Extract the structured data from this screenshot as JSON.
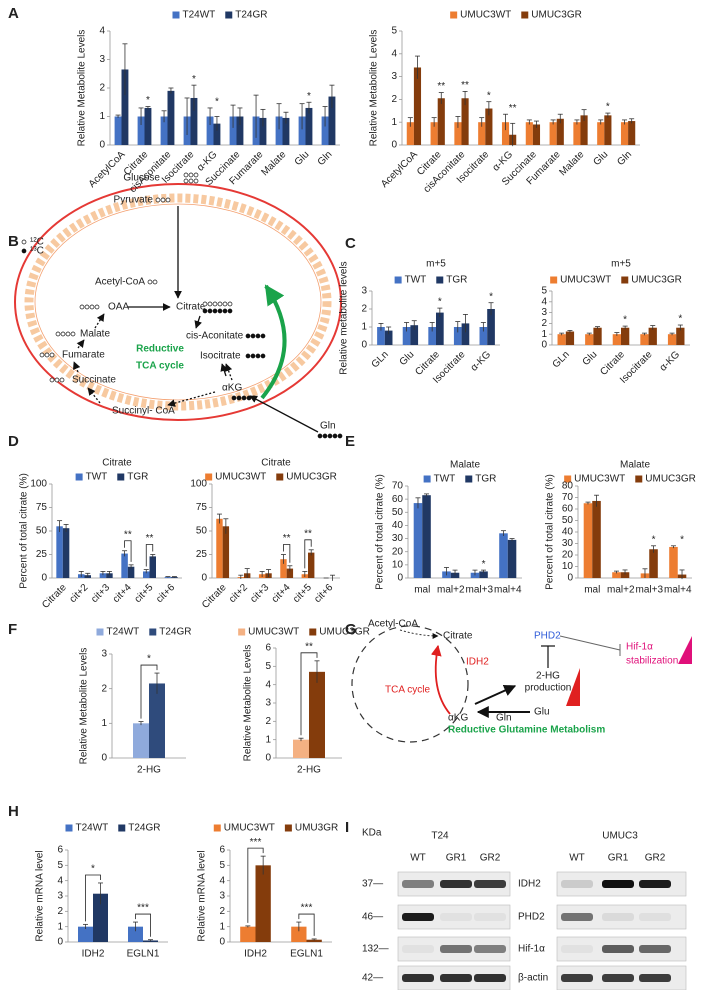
{
  "panel_labels": [
    "A",
    "B",
    "C",
    "D",
    "E",
    "F",
    "G",
    "H",
    "I"
  ],
  "chart_data": [
    {
      "type": "bar",
      "ylabel": "Relative Metabolite Levels",
      "categories": [
        "AcetylCoA",
        "Citrate",
        "cisAconitate",
        "Isocitrate",
        "α-KG",
        "Succinate",
        "Fumarate",
        "Malate",
        "Glu",
        "Gln"
      ],
      "series": [
        {
          "name": "T24WT",
          "color": "#4472c4",
          "values": [
            1,
            1,
            1,
            1,
            1,
            1,
            1,
            1,
            1,
            1
          ],
          "errors": [
            0.05,
            0.3,
            0.2,
            0.65,
            0.3,
            0.4,
            0.75,
            0.45,
            0.45,
            0.35
          ]
        },
        {
          "name": "T24GR",
          "color": "#203864",
          "values": [
            2.65,
            1.3,
            1.9,
            1.65,
            0.75,
            1.0,
            0.95,
            0.95,
            1.3,
            1.7
          ],
          "errors": [
            0.9,
            0.05,
            0.1,
            0.45,
            0.25,
            0.3,
            0.3,
            0.2,
            0.2,
            0.4
          ]
        }
      ],
      "significance": [
        null,
        "*",
        null,
        "*",
        "*",
        null,
        null,
        null,
        "*",
        null
      ],
      "ylim": [
        0,
        4
      ],
      "yticks": [
        0,
        1,
        2,
        3,
        4
      ]
    },
    {
      "type": "bar",
      "ylabel": "Relative Metabolite Levels",
      "categories": [
        "AcetylCoA",
        "Citrate",
        "cisAconitate",
        "Isocitrate",
        "α-KG",
        "Succinate",
        "Fumarate",
        "Malate",
        "Glu",
        "Gln"
      ],
      "series": [
        {
          "name": "UMUC3WT",
          "color": "#ed7d31",
          "values": [
            1,
            1,
            1,
            1,
            1,
            1,
            1,
            1,
            1,
            1
          ],
          "errors": [
            0.2,
            0.2,
            0.25,
            0.2,
            0.35,
            0.1,
            0.1,
            0.1,
            0.1,
            0.1
          ]
        },
        {
          "name": "UMUC3GR",
          "color": "#843c0c",
          "values": [
            3.4,
            2.05,
            2.05,
            1.6,
            0.45,
            0.9,
            1.15,
            1.3,
            1.3,
            1.05
          ],
          "errors": [
            0.5,
            0.25,
            0.3,
            0.3,
            0.5,
            0.15,
            0.2,
            0.25,
            0.1,
            0.1
          ]
        }
      ],
      "significance": [
        null,
        "**",
        "**",
        "*",
        "**",
        null,
        null,
        null,
        "*",
        null
      ],
      "ylim": [
        0,
        5
      ],
      "yticks": [
        0,
        1,
        2,
        3,
        4,
        5
      ]
    },
    {
      "type": "bar",
      "title": "m+5",
      "ylabel": "Relative metabolite levels",
      "categories": [
        "GLn",
        "Glu",
        "Citrate",
        "Isocitrate",
        "α-KG"
      ],
      "series": [
        {
          "name": "TWT",
          "color": "#4472c4",
          "values": [
            1,
            1,
            1,
            1,
            1
          ],
          "errors": [
            0.2,
            0.25,
            0.25,
            0.3,
            0.25
          ]
        },
        {
          "name": "TGR",
          "color": "#203864",
          "values": [
            0.8,
            1.1,
            1.8,
            1.2,
            2.0
          ],
          "errors": [
            0.2,
            0.25,
            0.25,
            0.5,
            0.35
          ]
        }
      ],
      "significance": [
        null,
        null,
        "*",
        null,
        "*"
      ],
      "ylim": [
        0,
        3
      ],
      "yticks": [
        0,
        1,
        2,
        3
      ]
    },
    {
      "type": "bar",
      "title": "m+5",
      "categories": [
        "GLn",
        "Glu",
        "Citrate",
        "Isocitrate",
        "α-KG"
      ],
      "series": [
        {
          "name": "UMUC3WT",
          "color": "#ed7d31",
          "values": [
            1,
            1,
            1,
            1,
            1
          ],
          "errors": [
            0.1,
            0.1,
            0.15,
            0.1,
            0.1
          ]
        },
        {
          "name": "UMUC3GR",
          "color": "#843c0c",
          "values": [
            1.25,
            1.6,
            1.6,
            1.6,
            1.6
          ],
          "errors": [
            0.1,
            0.1,
            0.15,
            0.2,
            0.25
          ]
        }
      ],
      "significance": [
        null,
        null,
        "*",
        null,
        "*"
      ],
      "ylim": [
        0,
        5
      ],
      "yticks": [
        0,
        1,
        2,
        3,
        4,
        5
      ]
    },
    {
      "type": "bar",
      "title": "Citrate",
      "ylabel": "Percent of total citrate (%)",
      "categories": [
        "Citrate",
        "cit+2",
        "cit+3",
        "cit+4",
        "cit+5",
        "cit+6"
      ],
      "series": [
        {
          "name": "TWT",
          "color": "#4472c4",
          "values": [
            55,
            4,
            5,
            26,
            7,
            1
          ],
          "errors": [
            6,
            3,
            2,
            3,
            2,
            0.5
          ]
        },
        {
          "name": "TGR",
          "color": "#203864",
          "values": [
            53,
            3,
            5,
            12,
            23,
            1
          ],
          "errors": [
            4,
            2,
            2,
            2,
            2,
            0.5
          ]
        }
      ],
      "significance": [
        null,
        null,
        null,
        "**",
        "**",
        null
      ],
      "ylim": [
        0,
        100
      ],
      "yticks": [
        0,
        25,
        50,
        75,
        100
      ]
    },
    {
      "type": "bar",
      "title": "Citrate",
      "categories": [
        "Citrate",
        "cit+2",
        "cit+3",
        "cit+4",
        "cit+5",
        "cit+6"
      ],
      "series": [
        {
          "name": "UMUC3WT",
          "color": "#ed7d31",
          "values": [
            63,
            1,
            4,
            20,
            4,
            0
          ],
          "errors": [
            5,
            2,
            3,
            5,
            3,
            0
          ]
        },
        {
          "name": "UMUC3GR",
          "color": "#843c0c",
          "values": [
            55,
            5,
            5,
            10,
            27,
            0
          ],
          "errors": [
            8,
            5,
            4,
            3,
            3,
            3
          ]
        }
      ],
      "significance": [
        null,
        null,
        null,
        "**",
        "**",
        null
      ],
      "ylim": [
        0,
        100
      ],
      "yticks": [
        0,
        25,
        50,
        75,
        100
      ]
    },
    {
      "type": "bar",
      "title": "Malate",
      "ylabel": "Percent of total citrate (%)",
      "categories": [
        "mal",
        "mal+2",
        "mal+3",
        "mal+4"
      ],
      "series": [
        {
          "name": "TWT",
          "color": "#4472c4",
          "values": [
            57,
            5,
            4,
            34
          ],
          "errors": [
            4,
            3,
            2,
            2
          ]
        },
        {
          "name": "TGR",
          "color": "#203864",
          "values": [
            63,
            4,
            5,
            29
          ],
          "errors": [
            1,
            2,
            1,
            1
          ]
        }
      ],
      "significance": [
        null,
        null,
        "*",
        null
      ],
      "ylim": [
        0,
        70
      ],
      "yticks": [
        0,
        10,
        20,
        30,
        40,
        50,
        60,
        70
      ]
    },
    {
      "type": "bar",
      "title": "Malate",
      "ylabel": "Percent of total citrate (%)",
      "categories": [
        "mal",
        "mal+2",
        "mal+3",
        "mal+4"
      ],
      "series": [
        {
          "name": "UMUC3WT",
          "color": "#ed7d31",
          "values": [
            65,
            5,
            4,
            27
          ],
          "errors": [
            1,
            1,
            4,
            1
          ]
        },
        {
          "name": "UMUC3GR",
          "color": "#843c0c",
          "values": [
            67,
            5,
            25,
            3
          ],
          "errors": [
            5,
            2,
            3,
            4
          ]
        }
      ],
      "significance": [
        null,
        null,
        "*",
        "*"
      ],
      "ylim": [
        0,
        80
      ],
      "yticks": [
        0,
        10,
        20,
        30,
        40,
        50,
        60,
        70,
        80
      ]
    },
    {
      "type": "bar",
      "ylabel": "Relative Metabolite Levels",
      "categories": [
        "2-HG"
      ],
      "series": [
        {
          "name": "T24WT",
          "color": "#8faadc",
          "values": [
            1
          ],
          "errors": [
            0.05
          ]
        },
        {
          "name": "T24GR",
          "color": "#2f4b7c",
          "values": [
            2.15
          ],
          "errors": [
            0.3
          ]
        }
      ],
      "significance": [
        "*"
      ],
      "ylim": [
        0,
        3
      ],
      "yticks": [
        0,
        1,
        2,
        3
      ]
    },
    {
      "type": "bar",
      "ylabel": "Relative Metabolite Levels",
      "categories": [
        "2-HG"
      ],
      "series": [
        {
          "name": "UMUC3WT",
          "color": "#f4b183",
          "values": [
            1
          ],
          "errors": [
            0.08
          ]
        },
        {
          "name": "UMUC3GR",
          "color": "#843c0c",
          "values": [
            4.7
          ],
          "errors": [
            0.6
          ]
        }
      ],
      "significance": [
        "**"
      ],
      "ylim": [
        0,
        6
      ],
      "yticks": [
        0,
        1,
        2,
        3,
        4,
        5,
        6
      ]
    },
    {
      "type": "bar",
      "ylabel": "Relative mRNA level",
      "categories": [
        "IDH2",
        "EGLN1"
      ],
      "series": [
        {
          "name": "T24WT",
          "color": "#4472c4",
          "values": [
            1,
            1
          ],
          "errors": [
            0.15,
            0.3
          ]
        },
        {
          "name": "T24GR",
          "color": "#203864",
          "values": [
            3.15,
            0.1
          ],
          "errors": [
            0.7,
            0.05
          ]
        }
      ],
      "significance": [
        "*",
        "***"
      ],
      "ylim": [
        0,
        6
      ],
      "yticks": [
        0,
        1,
        2,
        3,
        4,
        5,
        6
      ]
    },
    {
      "type": "bar",
      "ylabel": "Relative mRNA level",
      "categories": [
        "IDH2",
        "EGLN1"
      ],
      "series": [
        {
          "name": "UMUC3WT",
          "color": "#ed7d31",
          "values": [
            1,
            1
          ],
          "errors": [
            0.05,
            0.3
          ]
        },
        {
          "name": "UMU3GR",
          "color": "#843c0c",
          "values": [
            5.0,
            0.15
          ],
          "errors": [
            0.6,
            0.05
          ]
        }
      ],
      "significance": [
        "***",
        "***"
      ],
      "ylim": [
        0,
        6
      ],
      "yticks": [
        0,
        1,
        2,
        3,
        4,
        5,
        6
      ]
    }
  ],
  "diagram_b": {
    "glucose": "Glucose",
    "pyruvate": "Pyruvate",
    "c12": "¹²C",
    "c13": "¹³C",
    "acetyl_coa": "Acetyl-CoA",
    "oaa": "OAA",
    "citrate": "Citrate",
    "cis_aconitate": "cis-Aconitate",
    "isocitrate": "Isocitrate",
    "akg": "αKG",
    "succinyl_coa": "Succinyl- CoA",
    "succinate": "Succinate",
    "fumarate": "Fumarate",
    "malate": "Malate",
    "cycle_line1": "Reductive",
    "cycle_line2": "TCA cycle",
    "gln": "Gln"
  },
  "diagram_g": {
    "acetyl_coa": "Acetyl-CoA",
    "citrate": "Citrate",
    "phd2": "PHD2",
    "hif_line1": "Hif-1α",
    "hif_line2": "stabilization",
    "idh2": "IDH2",
    "hg_line1": "2-HG",
    "hg_line2": "production",
    "tca": "TCA cycle",
    "akg": "αKG",
    "gln": "Gln",
    "glu": "Glu",
    "reductive": "Reductive Glutamine Metabolism"
  },
  "blot": {
    "title_left": "T24",
    "title_right": "UMUC3",
    "unit": "KDa",
    "lanes_left": [
      "WT",
      "GR1",
      "GR2"
    ],
    "lanes_right": [
      "WT",
      "GR1",
      "GR2"
    ],
    "markers": [
      "37—",
      "46—",
      "132—",
      "42—"
    ],
    "proteins": [
      "IDH2",
      "PHD2",
      "Hif-1α",
      "β-actin"
    ]
  }
}
